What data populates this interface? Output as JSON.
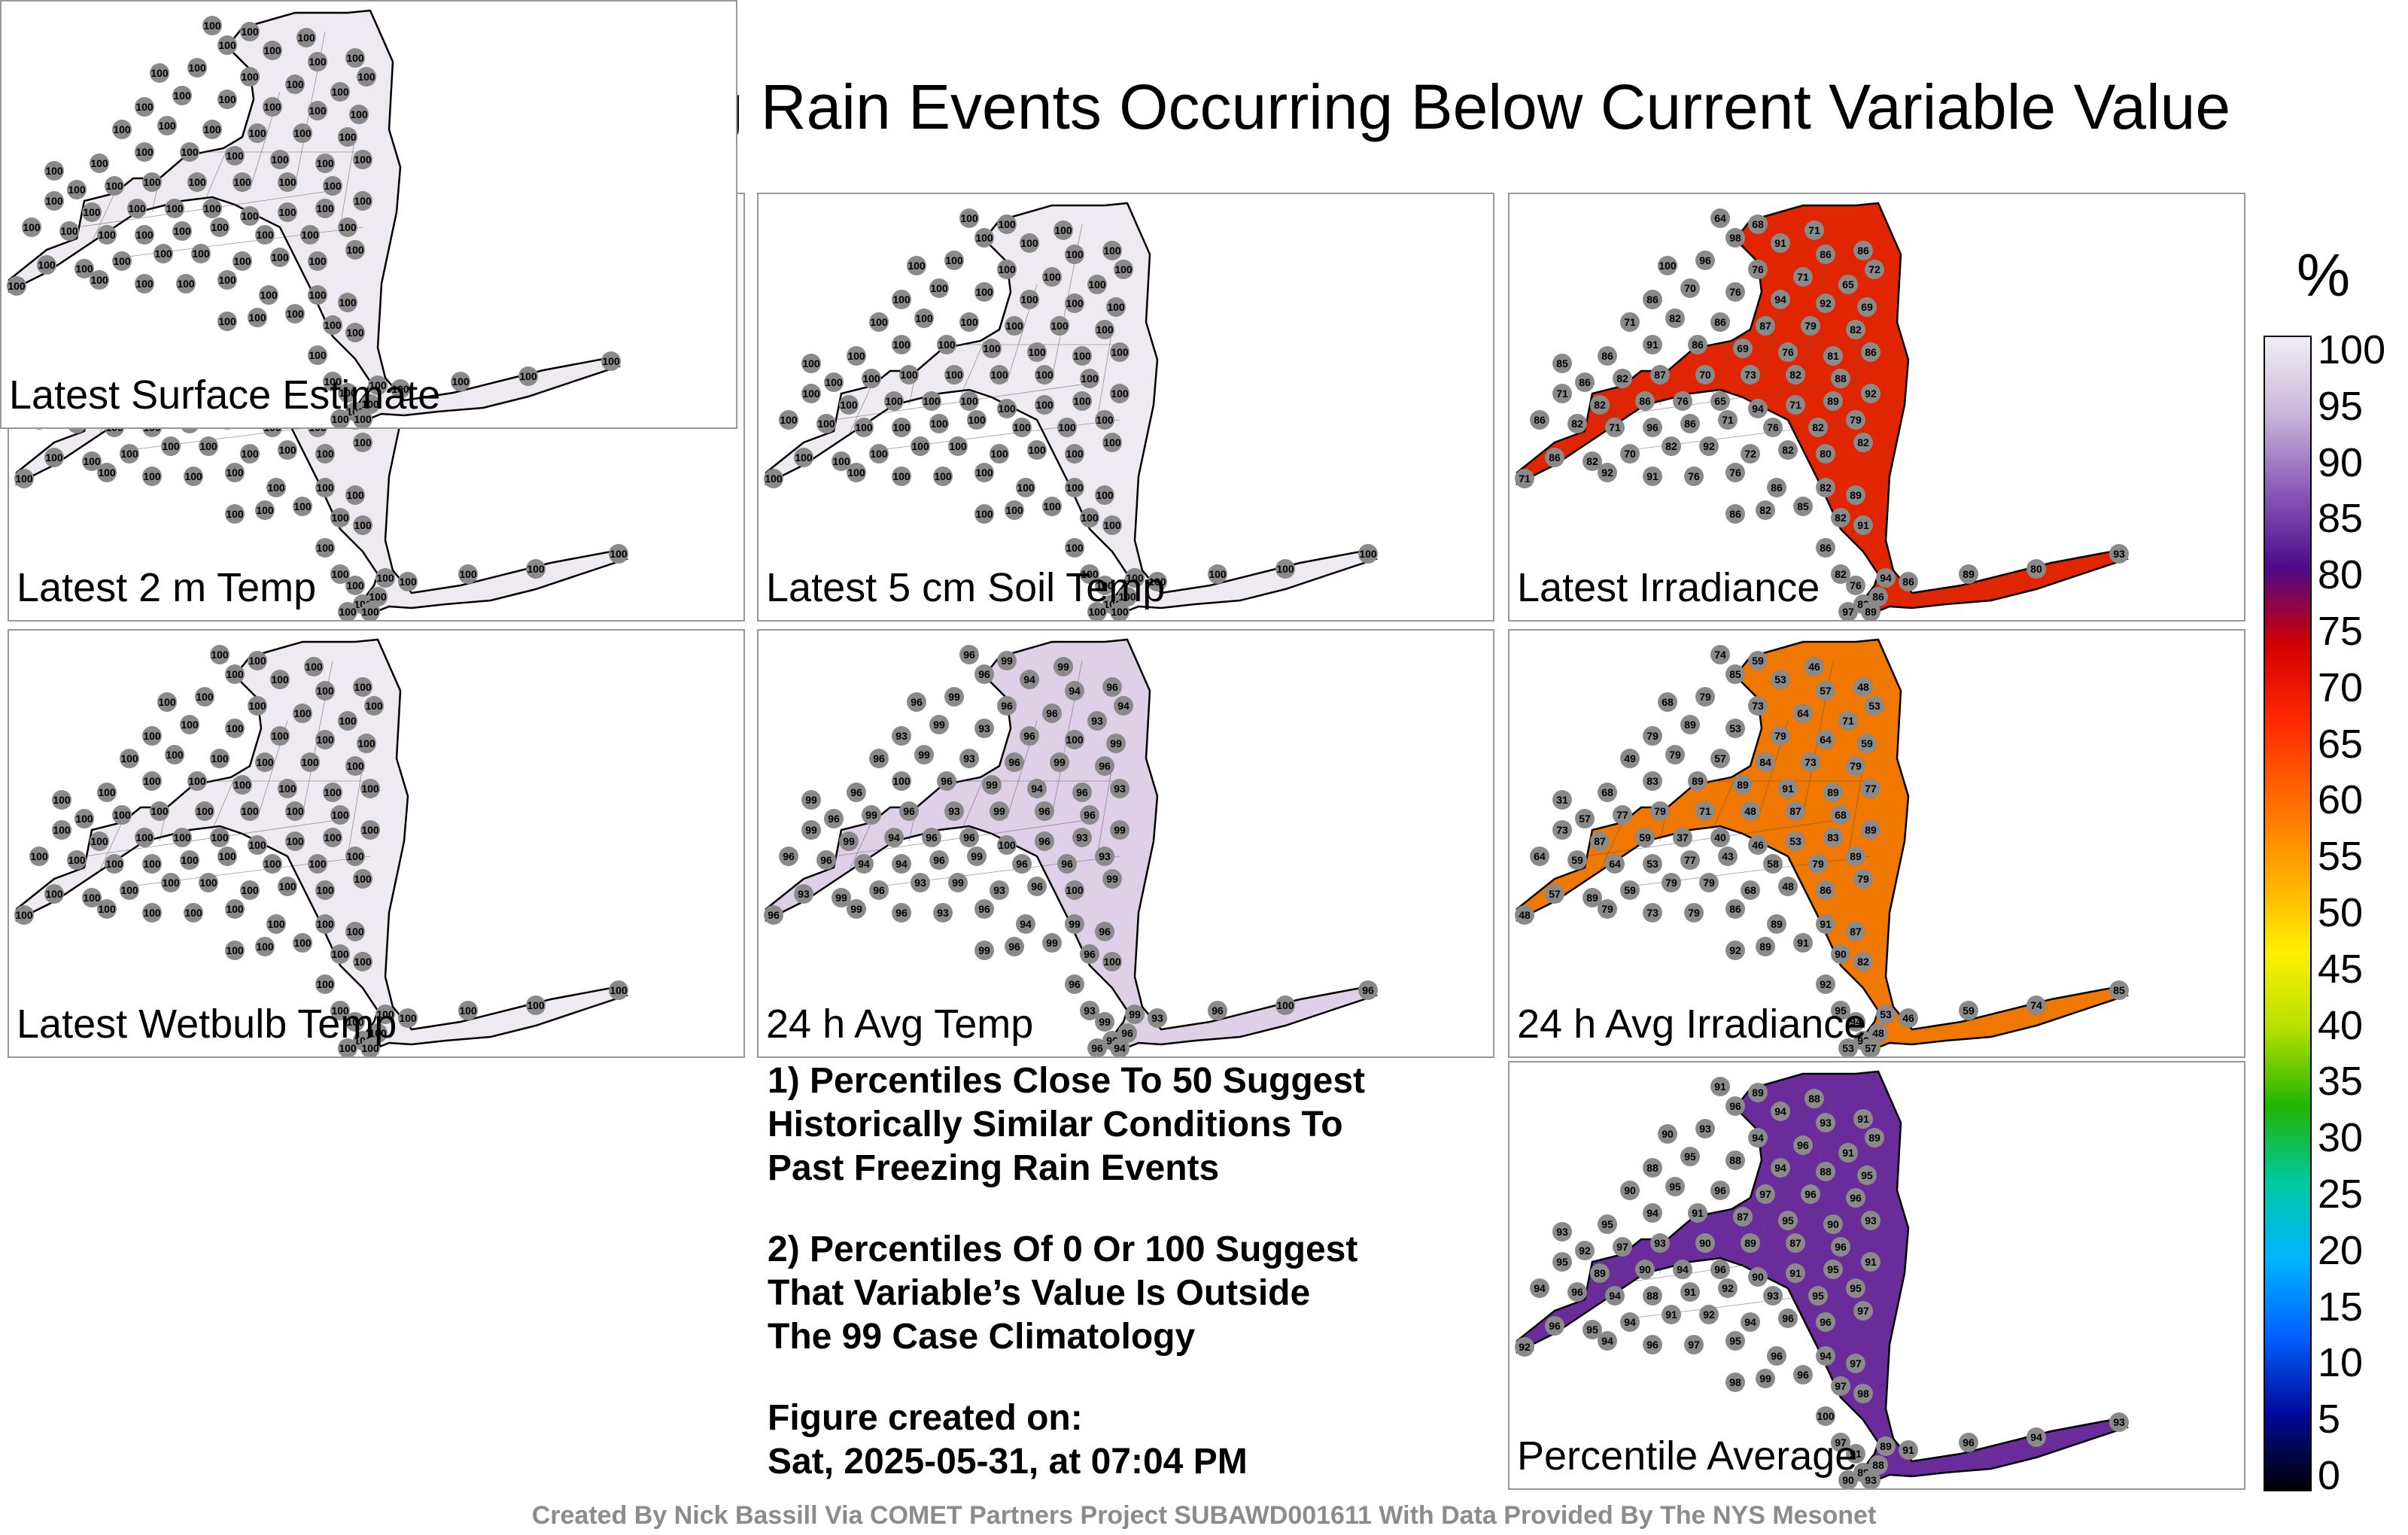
{
  "title": "Percent Of Freezing Rain Events Occurring Below Current Variable Value",
  "panels": [
    {
      "label": "Latest 2 m Temp",
      "fill": "#efe9f2",
      "values": []
    },
    {
      "label": "Latest 5 cm Soil Temp",
      "fill": "#efe9f2",
      "values": []
    },
    {
      "label": "Latest Irradiance",
      "fill": "#e02500",
      "values": [
        86,
        72,
        71,
        68,
        64,
        98,
        91,
        86,
        100,
        96,
        76,
        71,
        65,
        69,
        92,
        94,
        76,
        70,
        86,
        71,
        82,
        86,
        87,
        79,
        82,
        86,
        81,
        76,
        69,
        86,
        91,
        86,
        85,
        86,
        82,
        87,
        70,
        73,
        82,
        88,
        92,
        89,
        71,
        94,
        65,
        76,
        86,
        82,
        71,
        86,
        82,
        71,
        96,
        86,
        71,
        76,
        82,
        79,
        82,
        80,
        82,
        72,
        92,
        82,
        70,
        82,
        86,
        71,
        92,
        91,
        76,
        76,
        86,
        82,
        89,
        91,
        82,
        85,
        82,
        86,
        86,
        82,
        76,
        82,
        86,
        94,
        86,
        89,
        80,
        93,
        97,
        89,
        100,
        89
      ]
    },
    {
      "label": "Latest Wetbulb Temp",
      "fill": "#efe9f2",
      "values": []
    },
    {
      "label": "24 h Avg Temp",
      "fill": "#ddd0e7",
      "values": [
        96,
        94,
        99,
        99,
        96,
        96,
        94,
        94,
        96,
        99,
        96,
        96,
        93,
        99,
        100,
        96,
        93,
        99,
        93,
        96,
        99,
        93,
        96,
        99,
        96,
        93,
        96,
        94,
        99,
        96,
        100,
        96,
        99,
        96,
        99,
        96,
        93,
        99,
        96,
        96,
        99,
        93,
        96,
        100,
        96
      ]
    },
    {
      "label": "24 h Avg Irradiance",
      "fill": "#f07800",
      "values": [
        48,
        53,
        46,
        59,
        74,
        85,
        53,
        57,
        68,
        79,
        73,
        64,
        71,
        59,
        64,
        79,
        53,
        89,
        79,
        49,
        79,
        57,
        84,
        73,
        79,
        77,
        89,
        91,
        89,
        89,
        83,
        68,
        31,
        57,
        77,
        79,
        71,
        48,
        87,
        68,
        89,
        83,
        53,
        46,
        40,
        37,
        59,
        87,
        73,
        64,
        59,
        64,
        53,
        77,
        43,
        58,
        79,
        89,
        79,
        86,
        48,
        68,
        79,
        79,
        59,
        89,
        57,
        48,
        79,
        73,
        79,
        86,
        89,
        91,
        87,
        82,
        90,
        91,
        89,
        92,
        92,
        95,
        94,
        92
      ]
    },
    {
      "label": "Latest Surface Estimate",
      "fill": "#efe9f2",
      "values": []
    },
    {
      "label": "Percentile Average",
      "fill": "#6a2c9a",
      "values": [
        91,
        89,
        88,
        89,
        91,
        96,
        94,
        93,
        90,
        93,
        94,
        96,
        91,
        95,
        88,
        94,
        88,
        95,
        88,
        90,
        95,
        96,
        97,
        96,
        96,
        93,
        90,
        95,
        87,
        91,
        94,
        95,
        93,
        92,
        97,
        93,
        90,
        89,
        87,
        96,
        91,
        95,
        91,
        90,
        96,
        94,
        90,
        89,
        95,
        94,
        96,
        94,
        88,
        91,
        92,
        93,
        95,
        95,
        97,
        96,
        96,
        94,
        92,
        91,
        94,
        95,
        96,
        92,
        94,
        96,
        97,
        95,
        96,
        94,
        97,
        98,
        97,
        96,
        99,
        98,
        100,
        97
      ]
    }
  ],
  "notes": [
    "1) Percentiles Close To 50 Suggest",
    "Historically Similar Conditions To",
    "Past Freezing Rain Events",
    "2) Percentiles Of 0 Or 100 Suggest",
    "That Variable’s Value Is Outside",
    "The 99 Case Climatology",
    "Figure created on:",
    "Sat, 2025-05-31, at 07:04 PM"
  ],
  "colorbar": {
    "unit": "%",
    "ticks": [
      "100",
      "95",
      "90",
      "85",
      "80",
      "75",
      "70",
      "65",
      "60",
      "55",
      "50",
      "45",
      "40",
      "35",
      "30",
      "25",
      "20",
      "15",
      "10",
      "5",
      "0"
    ],
    "stops": [
      "#f2eef5",
      "#c9b6da",
      "#8a5ab8",
      "#4d0a8a",
      "#d10000",
      "#ff2a00",
      "#ff6a00",
      "#ffaa00",
      "#fff000",
      "#b4e000",
      "#22b400",
      "#00c8a0",
      "#00b4ff",
      "#0060ff",
      "#000a9a",
      "#000000"
    ]
  },
  "credit": "Created By Nick Bassill Via COMET Partners Project SUBAWD001611 With Data Provided By The NYS Mesonet",
  "station_default_value": "100"
}
